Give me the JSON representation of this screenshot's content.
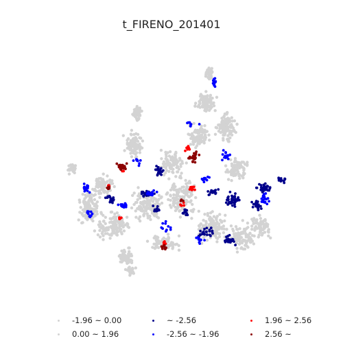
{
  "title": "t_FIRENO_201401",
  "chart_data": {
    "type": "scatter",
    "title": "t_FIRENO_201401",
    "axes_visible": false,
    "legend_position": "bottom",
    "classes": [
      {
        "label": "-1.96 ~ 0.00",
        "color": "#d3d3d3"
      },
      {
        "label": "0.00 ~ 1.96",
        "color": "#d3d3d3"
      },
      {
        "label": "~ -2.56",
        "color": "#00008b"
      },
      {
        "label": "-2.56 ~ -1.96",
        "color": "#0000ff"
      },
      {
        "label": "1.96 ~ 2.56",
        "color": "#ff0000"
      },
      {
        "label": "2.56 ~",
        "color": "#8b0000"
      }
    ]
  }
}
